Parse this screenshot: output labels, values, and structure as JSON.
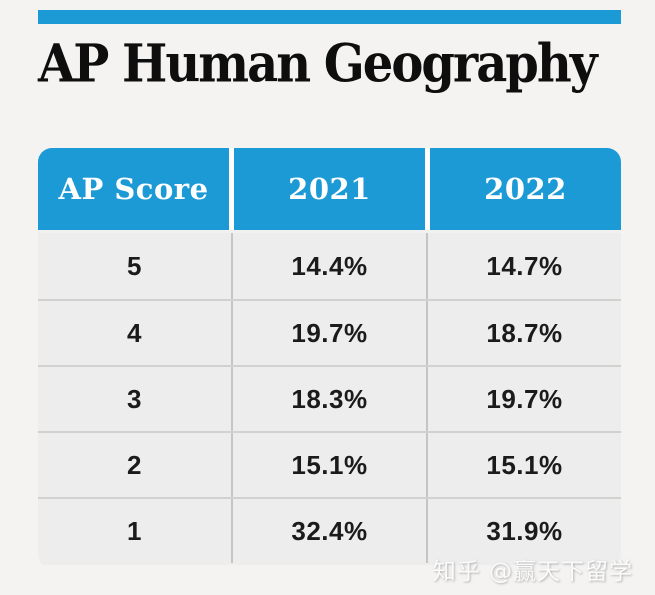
{
  "title": "AP Human Geography",
  "table": {
    "columns": [
      "AP Score",
      "2021",
      "2022"
    ],
    "rows": [
      [
        "5",
        "14.4%",
        "14.7%"
      ],
      [
        "4",
        "19.7%",
        "18.7%"
      ],
      [
        "3",
        "18.3%",
        "19.7%"
      ],
      [
        "2",
        "15.1%",
        "15.1%"
      ],
      [
        "1",
        "32.4%",
        "31.9%"
      ]
    ]
  },
  "watermark": "知乎 @赢天下留学",
  "colors": {
    "accent_blue": "#1b9ad6",
    "header_text": "#ffffff",
    "row_background": "#ededed",
    "page_background": "#f4f3f1",
    "body_text": "#1b1b1b"
  },
  "chart_data": {
    "type": "table",
    "title": "AP Human Geography",
    "columns": [
      "AP Score",
      "2021",
      "2022"
    ],
    "rows": [
      [
        "5",
        "14.4%",
        "14.7%"
      ],
      [
        "4",
        "19.7%",
        "18.7%"
      ],
      [
        "3",
        "18.3%",
        "19.7%"
      ],
      [
        "2",
        "15.1%",
        "15.1%"
      ],
      [
        "1",
        "32.4%",
        "31.9%"
      ]
    ]
  }
}
